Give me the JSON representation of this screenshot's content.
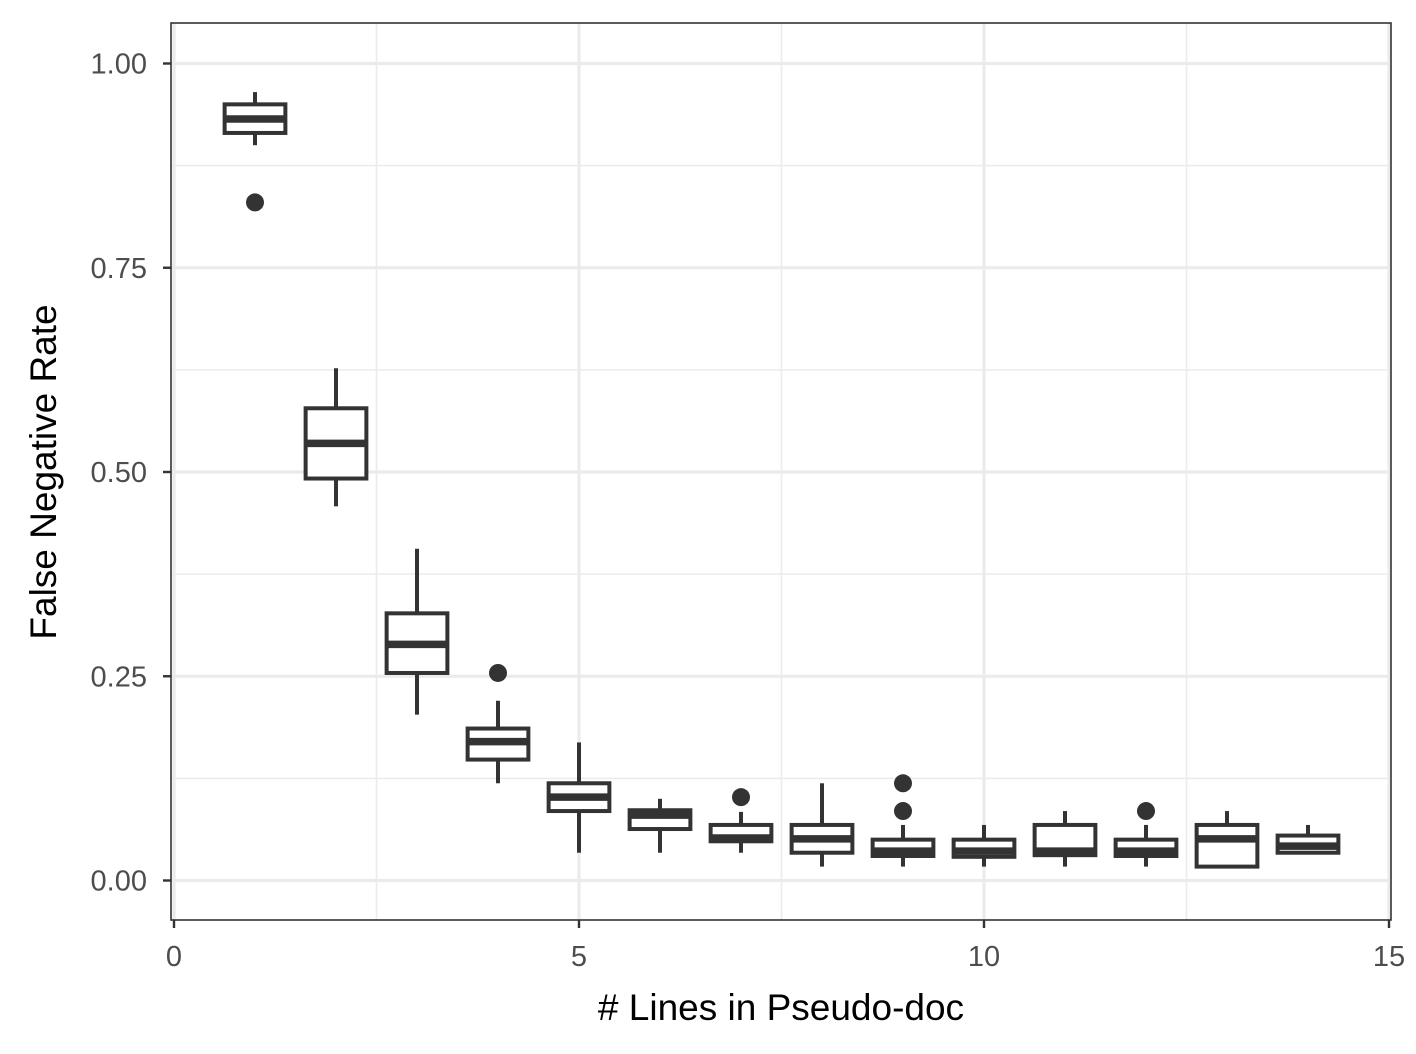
{
  "chart_data": {
    "type": "boxplot",
    "title": "",
    "xlabel": "# Lines in Pseudo-doc",
    "ylabel": "False Negative Rate",
    "xlim": [
      0,
      15
    ],
    "ylim": [
      -0.1,
      1.05
    ],
    "x_ticks": [
      0,
      5,
      10,
      15
    ],
    "x_tick_labels": [
      "0",
      "5",
      "10",
      "15"
    ],
    "y_ticks": [
      0,
      0.25,
      0.5,
      0.75,
      1.0
    ],
    "y_tick_labels": [
      "0.00",
      "0.25",
      "0.50",
      "0.75",
      "1.00"
    ],
    "grid": true,
    "legend": "none",
    "colors": {
      "box_line": "#333333",
      "box_fill": "#ffffff",
      "grid": "#ebebeb"
    },
    "boxes": [
      {
        "x": 1,
        "low": 0.9,
        "q1": 0.915,
        "median": 0.932,
        "q3": 0.95,
        "high": 0.965,
        "outliers": [
          0.83
        ]
      },
      {
        "x": 2,
        "low": 0.458,
        "q1": 0.492,
        "median": 0.535,
        "q3": 0.578,
        "high": 0.627,
        "outliers": []
      },
      {
        "x": 3,
        "low": 0.203,
        "q1": 0.254,
        "median": 0.289,
        "q3": 0.327,
        "high": 0.406,
        "outliers": []
      },
      {
        "x": 4,
        "low": 0.119,
        "q1": 0.148,
        "median": 0.17,
        "q3": 0.186,
        "high": 0.22,
        "outliers": [
          0.254
        ]
      },
      {
        "x": 5,
        "low": 0.034,
        "q1": 0.085,
        "median": 0.102,
        "q3": 0.119,
        "high": 0.169,
        "outliers": []
      },
      {
        "x": 6,
        "low": 0.034,
        "q1": 0.063,
        "median": 0.08,
        "q3": 0.086,
        "high": 0.1,
        "outliers": []
      },
      {
        "x": 7,
        "low": 0.034,
        "q1": 0.048,
        "median": 0.052,
        "q3": 0.068,
        "high": 0.084,
        "outliers": [
          0.102
        ]
      },
      {
        "x": 8,
        "low": 0.017,
        "q1": 0.034,
        "median": 0.051,
        "q3": 0.068,
        "high": 0.119,
        "outliers": []
      },
      {
        "x": 9,
        "low": 0.017,
        "q1": 0.03,
        "median": 0.036,
        "q3": 0.05,
        "high": 0.068,
        "outliers": [
          0.085,
          0.119
        ]
      },
      {
        "x": 10,
        "low": 0.017,
        "q1": 0.029,
        "median": 0.036,
        "q3": 0.05,
        "high": 0.068,
        "outliers": []
      },
      {
        "x": 11,
        "low": 0.017,
        "q1": 0.031,
        "median": 0.036,
        "q3": 0.068,
        "high": 0.085,
        "outliers": []
      },
      {
        "x": 12,
        "low": 0.017,
        "q1": 0.03,
        "median": 0.036,
        "q3": 0.05,
        "high": 0.068,
        "outliers": [
          0.085
        ]
      },
      {
        "x": 13,
        "low": 0.017,
        "q1": 0.017,
        "median": 0.051,
        "q3": 0.068,
        "high": 0.085,
        "outliers": []
      },
      {
        "x": 14,
        "low": 0.034,
        "q1": 0.034,
        "median": 0.042,
        "q3": 0.055,
        "high": 0.068,
        "outliers": []
      }
    ]
  }
}
